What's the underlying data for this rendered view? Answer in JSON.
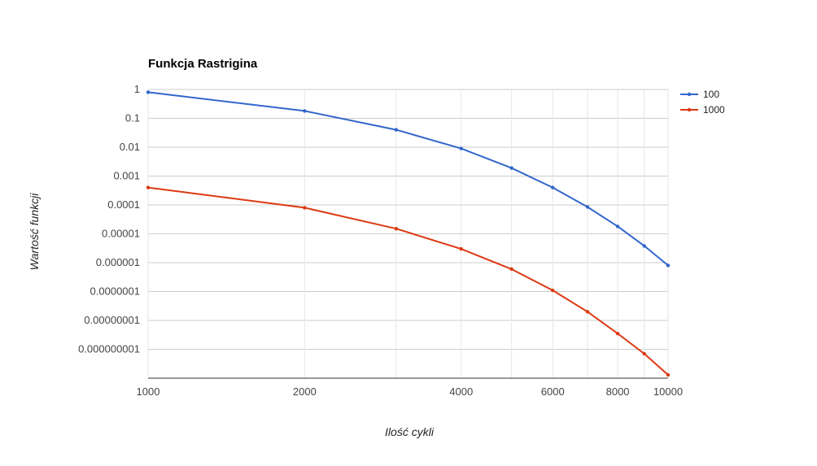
{
  "chart_data": {
    "type": "line",
    "title": "Funkcja Rastrigina",
    "xlabel": "Ilość cykli",
    "ylabel": "Wartość funkcji",
    "y_scale": "log",
    "x_scale": "log",
    "grid": true,
    "legend_position": "right",
    "x": [
      1000,
      2000,
      3000,
      4000,
      5000,
      6000,
      7000,
      8000,
      9000,
      10000
    ],
    "x_tick_labels": [
      "1000",
      "2000",
      "4000",
      "6000",
      "8000",
      "10000"
    ],
    "x_tick_values": [
      1000,
      2000,
      4000,
      6000,
      8000,
      10000
    ],
    "x_minor_gridlines": [
      3000,
      5000,
      7000,
      9000
    ],
    "y_tick_values": [
      1,
      0.1,
      0.01,
      0.001,
      0.0001,
      1e-05,
      1e-06,
      1e-07,
      1e-08,
      1e-09
    ],
    "y_tick_labels": [
      "1",
      "0.1",
      "0.01",
      "0.001",
      "0.0001",
      "0.00001",
      "0.000001",
      "0.0000001",
      "0.00000001",
      "0.000000001"
    ],
    "xlim": [
      1000,
      10000
    ],
    "ylim": [
      1e-10,
      1
    ],
    "series": [
      {
        "name": "100",
        "color": "#3366cc",
        "values": [
          0.8,
          0.18,
          0.04,
          0.009,
          0.0019,
          0.0004,
          8.5e-05,
          1.8e-05,
          3.8e-06,
          8e-07
        ]
      },
      {
        "name": "1000",
        "color": "#dc3912",
        "values": [
          0.0004,
          8e-05,
          1.5e-05,
          3e-06,
          6e-07,
          1.1e-07,
          2e-08,
          3.5e-09,
          7e-10,
          1.3e-10
        ]
      }
    ]
  }
}
